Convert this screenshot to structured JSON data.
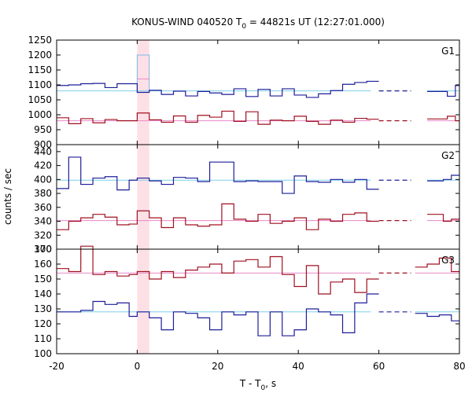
{
  "chart_data": {
    "type": "line",
    "title": "KONUS-WIND 040520 T",
    "title_sub": "0",
    "title_tail": " = 44821s UT (12:27:01.000)",
    "xlabel": "T - T",
    "xlabel_sub": "0",
    "xlabel_tail": ", s",
    "ylabel": "counts / sec",
    "xlim": [
      -20,
      80
    ],
    "xticks": [
      -20,
      0,
      20,
      40,
      60,
      80
    ],
    "highlight_interval": [
      0,
      3
    ],
    "colors": {
      "blue": "#1e1e9a",
      "red": "#a01020",
      "bg_blue": "#7fd0e8",
      "bg_red": "#e888c8",
      "shade": "#fde0e6",
      "spike_outline": "#7ab8e8"
    },
    "panels": [
      {
        "label": "G1",
        "ylim": [
          900,
          1250
        ],
        "yticks": [
          900,
          950,
          1000,
          1050,
          1100,
          1150,
          1200,
          1250
        ],
        "series": [
          {
            "name": "G1 upper (blue)",
            "color": "blue",
            "step_x": [
              -20,
              -17,
              -14,
              -11,
              -8,
              -5,
              0,
              3,
              6,
              9,
              12,
              15,
              18,
              21,
              24,
              27,
              30,
              33,
              36,
              39,
              42,
              45,
              48,
              51,
              54,
              57,
              60
            ],
            "step_y": [
              1098,
              1100,
              1104,
              1105,
              1091,
              1104,
              1075,
              1082,
              1068,
              1079,
              1063,
              1078,
              1073,
              1068,
              1087,
              1061,
              1085,
              1063,
              1087,
              1066,
              1058,
              1070,
              1081,
              1102,
              1108,
              1112,
              1112
            ],
            "background": 1080,
            "bg_x_end": 58,
            "dash_x": [
              60,
              68
            ],
            "tail_step_x": [
              72,
              77,
              79,
              80
            ],
            "tail_step_y": [
              1078,
              1062,
              1098
            ]
          },
          {
            "name": "G1 lower (red)",
            "color": "red",
            "step_x": [
              -20,
              -17,
              -14,
              -11,
              -8,
              -5,
              0,
              3,
              6,
              9,
              12,
              15,
              18,
              21,
              24,
              27,
              30,
              33,
              36,
              39,
              42,
              45,
              48,
              51,
              54,
              57,
              60
            ],
            "step_y": [
              990,
              970,
              987,
              973,
              984,
              980,
              1006,
              983,
              975,
              996,
              975,
              998,
              992,
              1012,
              978,
              1010,
              968,
              982,
              980,
              995,
              978,
              968,
              982,
              975,
              988,
              985,
              985
            ],
            "background": 980,
            "bg_x_end": 58,
            "dash_x": [
              60,
              68
            ],
            "tail_step_x": [
              72,
              77,
              79,
              80
            ],
            "tail_step_y": [
              986,
              995,
              980
            ]
          }
        ],
        "spike": {
          "x0": 0,
          "x1": 3,
          "blue": 1200,
          "red": 1120
        }
      },
      {
        "label": "G2",
        "ylim": [
          300,
          450
        ],
        "yticks": [
          300,
          320,
          340,
          360,
          380,
          400,
          420,
          440
        ],
        "series": [
          {
            "name": "G2 upper (blue)",
            "color": "blue",
            "step_x": [
              -20,
              -17,
              -14,
              -11,
              -8,
              -5,
              -2,
              0,
              3,
              6,
              9,
              12,
              15,
              18,
              21,
              24,
              27,
              30,
              33,
              36,
              39,
              42,
              45,
              48,
              51,
              54,
              57,
              60
            ],
            "step_y": [
              387,
              432,
              393,
              402,
              404,
              385,
              399,
              402,
              398,
              393,
              403,
              402,
              397,
              425,
              425,
              397,
              398,
              397,
              397,
              380,
              405,
              397,
              396,
              400,
              396,
              400,
              386,
              386
            ],
            "background": 399,
            "bg_x_end": 58,
            "dash_x": [
              60,
              68
            ],
            "tail_step_x": [
              72,
              76,
              78,
              80
            ],
            "tail_step_y": [
              398,
              400,
              406
            ]
          },
          {
            "name": "G2 lower (red)",
            "color": "red",
            "step_x": [
              -20,
              -17,
              -14,
              -11,
              -8,
              -5,
              -2,
              0,
              3,
              6,
              9,
              12,
              15,
              18,
              21,
              24,
              27,
              30,
              33,
              36,
              39,
              42,
              45,
              48,
              51,
              54,
              57,
              60
            ],
            "step_y": [
              328,
              340,
              345,
              350,
              346,
              335,
              336,
              355,
              345,
              331,
              345,
              335,
              333,
              335,
              365,
              343,
              340,
              350,
              337,
              340,
              345,
              328,
              343,
              340,
              350,
              352,
              340,
              340
            ],
            "background": 341,
            "bg_x_end": 58,
            "dash_x": [
              60,
              68
            ],
            "tail_step_x": [
              72,
              76,
              78,
              80
            ],
            "tail_step_y": [
              350,
              340,
              343
            ]
          }
        ]
      },
      {
        "label": "G3",
        "ylim": [
          100,
          170
        ],
        "yticks": [
          100,
          110,
          120,
          130,
          140,
          150,
          160,
          170
        ],
        "series": [
          {
            "name": "G3 upper (red)",
            "color": "red",
            "step_x": [
              -20,
              -17,
              -14,
              -11,
              -8,
              -5,
              -2,
              0,
              3,
              6,
              9,
              12,
              15,
              18,
              21,
              24,
              27,
              30,
              33,
              36,
              39,
              42,
              45,
              48,
              51,
              54,
              57,
              60
            ],
            "step_y": [
              157,
              155,
              172,
              153,
              155,
              152,
              153,
              155,
              150,
              155,
              151,
              156,
              158,
              160,
              154,
              162,
              163,
              158,
              165,
              153,
              145,
              159,
              140,
              148,
              150,
              141,
              150,
              150
            ],
            "background": 154,
            "bg_x_end": 58,
            "dash_x": [
              60,
              68
            ],
            "tail_step_x": [
              69,
              72,
              75,
              78,
              80
            ],
            "tail_step_y": [
              158,
              160,
              164,
              155
            ]
          },
          {
            "name": "G3 lower (blue)",
            "color": "blue",
            "step_x": [
              -20,
              -17,
              -14,
              -11,
              -8,
              -5,
              -2,
              0,
              3,
              6,
              9,
              12,
              15,
              18,
              21,
              24,
              27,
              30,
              33,
              36,
              39,
              42,
              45,
              48,
              51,
              54,
              57,
              60
            ],
            "step_y": [
              128,
              128,
              129,
              135,
              133,
              134,
              125,
              128,
              124,
              116,
              128,
              127,
              124,
              116,
              128,
              126,
              128,
              112,
              128,
              112,
              116,
              130,
              128,
              126,
              114,
              134,
              140,
              140
            ],
            "background": 128,
            "bg_x_end": 58,
            "dash_x": [
              60,
              68
            ],
            "tail_step_x": [
              69,
              72,
              75,
              78,
              80
            ],
            "tail_step_y": [
              127,
              125,
              126,
              122
            ]
          }
        ]
      }
    ]
  }
}
